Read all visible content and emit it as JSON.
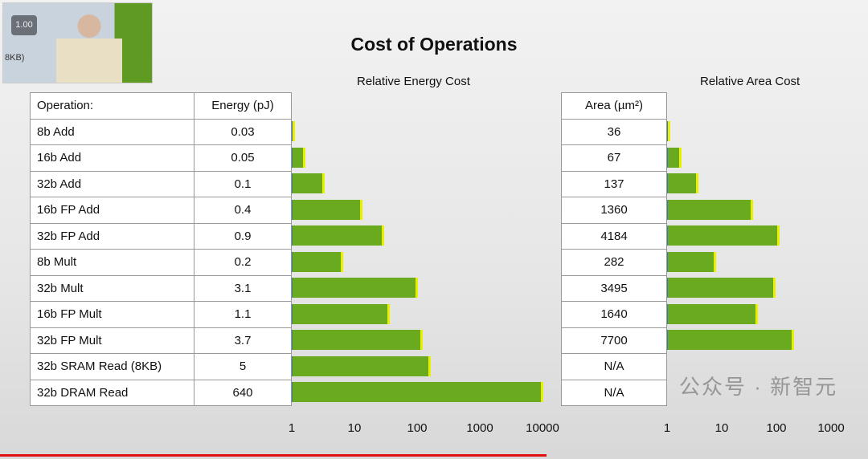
{
  "video": {
    "speed": "1.00",
    "fragment": "8KB)"
  },
  "chart_data": [
    {
      "type": "bar",
      "orientation": "horizontal",
      "title": "Cost of Operations",
      "subtitle": "Relative Energy Cost",
      "scale": "log",
      "xlim": [
        1,
        10000
      ],
      "xticks": [
        "1",
        "10",
        "100",
        "1000",
        "10000"
      ],
      "header": [
        "Operation:",
        "Energy (pJ)"
      ],
      "categories": [
        "8b Add",
        "16b Add",
        "32b Add",
        "16b FP Add",
        "32b FP Add",
        "8b Mult",
        "32b Mult",
        "16b FP Mult",
        "32b FP Mult",
        "32b SRAM Read (8KB)",
        "32b DRAM Read"
      ],
      "values_label": [
        "0.03",
        "0.05",
        "0.1",
        "0.4",
        "0.9",
        "0.2",
        "3.1",
        "1.1",
        "3.7",
        "5",
        "640"
      ],
      "values": [
        0.03,
        0.05,
        0.1,
        0.4,
        0.9,
        0.2,
        3.1,
        1.1,
        3.7,
        5,
        640
      ],
      "baseline": 0.03
    },
    {
      "type": "bar",
      "orientation": "horizontal",
      "subtitle": "Relative Area Cost",
      "scale": "log",
      "xlim": [
        1,
        1000
      ],
      "xticks": [
        "1",
        "10",
        "100",
        "1000"
      ],
      "header": "Area (µm²)",
      "values_label": [
        "36",
        "67",
        "137",
        "1360",
        "4184",
        "282",
        "3495",
        "1640",
        "7700",
        "N/A",
        "N/A"
      ],
      "values": [
        36,
        67,
        137,
        1360,
        4184,
        282,
        3495,
        1640,
        7700,
        null,
        null
      ],
      "baseline": 36
    }
  ],
  "watermark": "公众号 · 新智元"
}
